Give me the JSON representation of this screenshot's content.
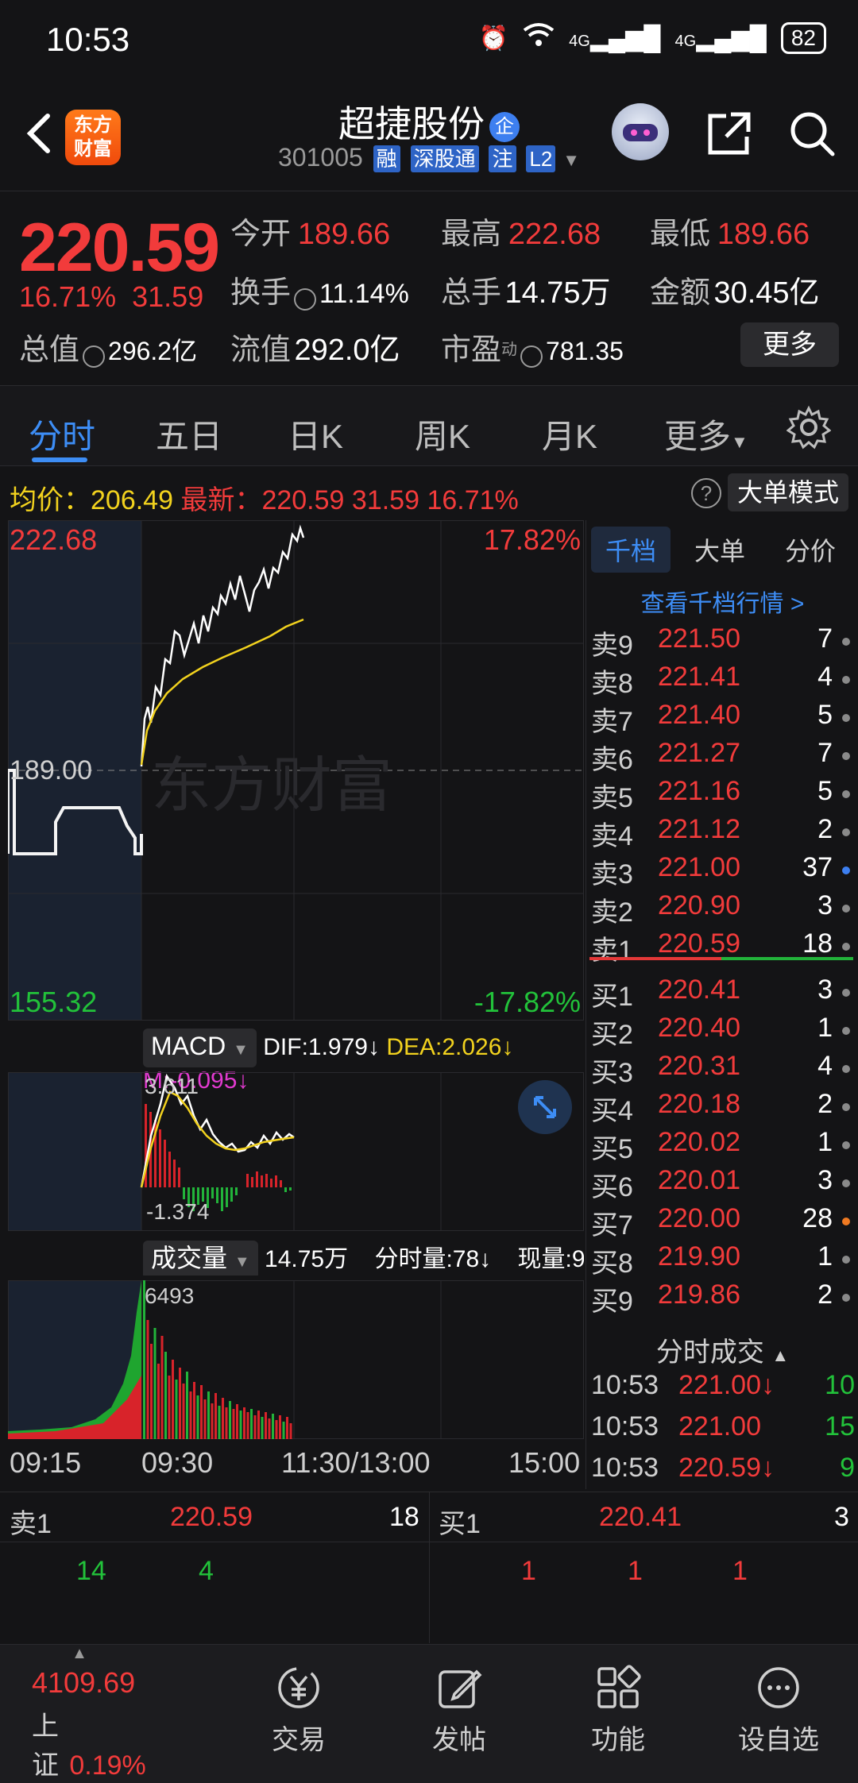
{
  "status_bar": {
    "time": "10:53",
    "network": "4G",
    "network2": "4G",
    "battery": "82"
  },
  "header": {
    "logo_text": "东方财富",
    "stock_name": "超捷股份",
    "badge": "企",
    "code": "301005",
    "tags": [
      "融",
      "深股通",
      "注",
      "L2"
    ]
  },
  "quote": {
    "price": "220.59",
    "change_pct": "16.71%",
    "change_amt": "31.59",
    "open_label": "今开",
    "open": "189.66",
    "high_label": "最高",
    "high": "222.68",
    "low_label": "最低",
    "low": "189.66",
    "turnover_label": "换手",
    "turnover": "11.14%",
    "volume_label": "总手",
    "volume": "14.75万",
    "amount_label": "金额",
    "amount": "30.45亿",
    "mktcap_label": "总值",
    "mktcap": "296.2亿",
    "float_label": "流值",
    "float": "292.0亿",
    "pe_label": "市盈",
    "pe_sup": "动",
    "pe": "781.35",
    "more": "更多"
  },
  "tabs": [
    "分时",
    "五日",
    "日K",
    "周K",
    "月K",
    "更多"
  ],
  "avg_line": {
    "avg_label": "均价：",
    "avg": "206.49",
    "latest_label": "最新：",
    "latest": "220.59",
    "chg": "31.59",
    "pct": "16.71%",
    "help": "?",
    "mode_btn": "大单模式"
  },
  "main_chart": {
    "top_price": "222.68",
    "top_pct": "17.82%",
    "mid_price": "189.00",
    "bottom_price": "155.32",
    "bottom_pct": "-17.82%",
    "watermark": "东方财富"
  },
  "macd": {
    "name": "MACD",
    "dif": "DIF:1.979↓",
    "dea": "DEA:2.026↓",
    "m": "M:-0.095↓",
    "top": "3.611",
    "bottom": "-1.374"
  },
  "volume": {
    "name": "成交量",
    "total": "14.75万",
    "fenshi": "分时量:78↓",
    "now": "现量:9",
    "max": "6493"
  },
  "time_axis": [
    "09:15",
    "09:30",
    "11:30/13:00",
    "15:00"
  ],
  "right_panel": {
    "tabs": [
      "千档",
      "大单",
      "分价"
    ],
    "link": "查看千档行情 >",
    "asks": [
      {
        "label": "卖9",
        "price": "221.50",
        "qty": "7"
      },
      {
        "label": "卖8",
        "price": "221.41",
        "qty": "4"
      },
      {
        "label": "卖7",
        "price": "221.40",
        "qty": "5"
      },
      {
        "label": "卖6",
        "price": "221.27",
        "qty": "7"
      },
      {
        "label": "卖5",
        "price": "221.16",
        "qty": "5"
      },
      {
        "label": "卖4",
        "price": "221.12",
        "qty": "2"
      },
      {
        "label": "卖3",
        "price": "221.00",
        "qty": "37"
      },
      {
        "label": "卖2",
        "price": "220.90",
        "qty": "3"
      },
      {
        "label": "卖1",
        "price": "220.59",
        "qty": "18"
      }
    ],
    "bids": [
      {
        "label": "买1",
        "price": "220.41",
        "qty": "3"
      },
      {
        "label": "买2",
        "price": "220.40",
        "qty": "1"
      },
      {
        "label": "买3",
        "price": "220.31",
        "qty": "4"
      },
      {
        "label": "买4",
        "price": "220.18",
        "qty": "2"
      },
      {
        "label": "买5",
        "price": "220.02",
        "qty": "1"
      },
      {
        "label": "买6",
        "price": "220.01",
        "qty": "3"
      },
      {
        "label": "买7",
        "price": "220.00",
        "qty": "28"
      },
      {
        "label": "买8",
        "price": "219.90",
        "qty": "1"
      },
      {
        "label": "买9",
        "price": "219.86",
        "qty": "2"
      }
    ],
    "fenshi_title": "分时成交",
    "trades": [
      {
        "time": "10:53",
        "price": "221.00↓",
        "vol": "10"
      },
      {
        "time": "10:53",
        "price": "221.00",
        "vol": "15"
      },
      {
        "time": "10:53",
        "price": "220.59↓",
        "vol": "9"
      }
    ]
  },
  "book_strip": {
    "ask_label": "卖1",
    "ask_price": "220.59",
    "ask_qty": "18",
    "bid_label": "买1",
    "bid_price": "220.41",
    "bid_qty": "3",
    "ask_orders": [
      "14",
      "4"
    ],
    "bid_orders": [
      "1",
      "1",
      "1"
    ]
  },
  "nav": {
    "index_value": "4109.69",
    "index_name": "上证",
    "index_pct": "0.19%",
    "items": [
      "交易",
      "发帖",
      "功能",
      "设自选"
    ]
  }
}
